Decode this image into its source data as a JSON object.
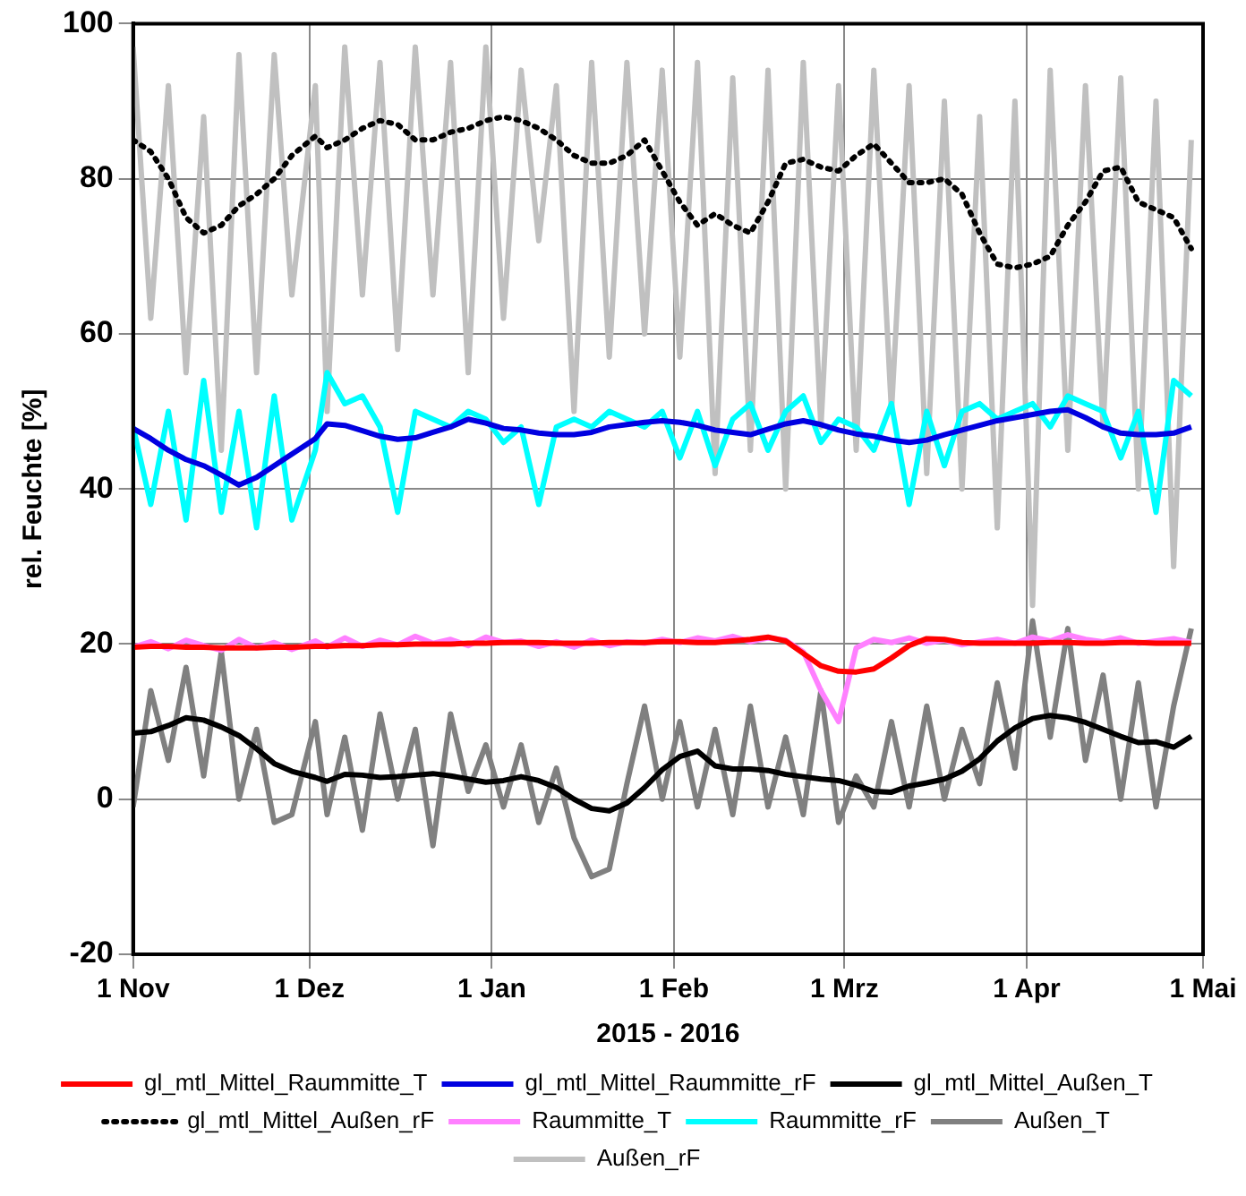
{
  "chart_data": {
    "type": "line",
    "xlabel": "2015 - 2016",
    "ylabel": "rel. Feuchte [%]",
    "x": [
      "2015-11-01",
      "2015-11-04",
      "2015-11-07",
      "2015-11-10",
      "2015-11-13",
      "2015-11-16",
      "2015-11-19",
      "2015-11-22",
      "2015-11-25",
      "2015-11-28",
      "2015-12-02",
      "2015-12-04",
      "2015-12-07",
      "2015-12-10",
      "2015-12-13",
      "2015-12-16",
      "2015-12-19",
      "2015-12-22",
      "2015-12-25",
      "2015-12-28",
      "2015-12-31",
      "2016-01-03",
      "2016-01-06",
      "2016-01-09",
      "2016-01-12",
      "2016-01-15",
      "2016-01-18",
      "2016-01-21",
      "2016-01-24",
      "2016-01-27",
      "2016-01-30",
      "2016-02-02",
      "2016-02-05",
      "2016-02-08",
      "2016-02-11",
      "2016-02-14",
      "2016-02-17",
      "2016-02-20",
      "2016-02-23",
      "2016-02-26",
      "2016-02-29",
      "2016-03-03",
      "2016-03-06",
      "2016-03-09",
      "2016-03-12",
      "2016-03-15",
      "2016-03-18",
      "2016-03-21",
      "2016-03-24",
      "2016-03-27",
      "2016-03-30",
      "2016-04-02",
      "2016-04-05",
      "2016-04-08",
      "2016-04-11",
      "2016-04-14",
      "2016-04-17",
      "2016-04-20",
      "2016-04-23",
      "2016-04-26",
      "2016-04-29"
    ],
    "series": [
      {
        "name": "gl_mtl_Mittel_Raummitte_T",
        "color": "#ff0000",
        "values": [
          19.6,
          19.7,
          19.7,
          19.6,
          19.6,
          19.5,
          19.5,
          19.5,
          19.6,
          19.6,
          19.7,
          19.7,
          19.8,
          19.8,
          19.9,
          19.9,
          20,
          20,
          20,
          20.1,
          20.1,
          20.2,
          20.2,
          20.2,
          20.1,
          20.1,
          20.1,
          20.2,
          20.2,
          20.2,
          20.3,
          20.3,
          20.2,
          20.2,
          20.4,
          20.6,
          20.9,
          20.4,
          18.8,
          17.2,
          16.5,
          16.4,
          16.8,
          18.2,
          19.8,
          20.7,
          20.6,
          20.2,
          20.1,
          20.1,
          20.1,
          20.1,
          20.2,
          20.2,
          20.1,
          20.1,
          20.2,
          20.2,
          20.1,
          20.1,
          20.1
        ]
      },
      {
        "name": "gl_mtl_Mittel_Raummitte_rF",
        "color": "#0000e0",
        "values": [
          47.8,
          46.5,
          45,
          43.8,
          43,
          41.8,
          40.5,
          41.5,
          43,
          44.5,
          46.5,
          48.4,
          48.2,
          47.5,
          46.8,
          46.4,
          46.6,
          47.3,
          48,
          49,
          48.5,
          47.8,
          47.6,
          47.2,
          47,
          47,
          47.3,
          48,
          48.3,
          48.6,
          48.8,
          48.6,
          48.2,
          47.6,
          47.3,
          47,
          47.7,
          48.4,
          48.8,
          48.3,
          47.6,
          47.1,
          46.8,
          46.3,
          46,
          46.3,
          47,
          47.6,
          48.2,
          48.8,
          49.2,
          49.6,
          50,
          50.2,
          49.2,
          48,
          47.2,
          47,
          47,
          47.2,
          48
        ]
      },
      {
        "name": "gl_mtl_Mittel_Außen_T",
        "color": "#000000",
        "values": [
          8.5,
          8.7,
          9.5,
          10.5,
          10.2,
          9.3,
          8.2,
          6.5,
          4.6,
          3.6,
          2.8,
          2.3,
          3.2,
          3.1,
          2.8,
          2.9,
          3.1,
          3.3,
          3,
          2.6,
          2.2,
          2.4,
          2.9,
          2.4,
          1.5,
          0,
          -1.2,
          -1.5,
          -0.5,
          1.5,
          3.8,
          5.5,
          6.2,
          4.3,
          3.9,
          3.9,
          3.7,
          3.2,
          2.9,
          2.6,
          2.4,
          1.8,
          1,
          0.9,
          1.7,
          2.1,
          2.6,
          3.6,
          5.2,
          7.5,
          9.2,
          10.4,
          10.8,
          10.5,
          9.9,
          9,
          8.1,
          7.3,
          7.4,
          6.7,
          8.1
        ]
      },
      {
        "name": "gl_mtl_Mittel_Außen_rF",
        "color": "#000000",
        "line_style": "dotted",
        "values": [
          85,
          83.5,
          80,
          75,
          73,
          74,
          76.5,
          78,
          80,
          83,
          85.5,
          84,
          85,
          86.5,
          87.5,
          87,
          85,
          85,
          86,
          86.5,
          87.5,
          88,
          87.5,
          86.5,
          85,
          83,
          82,
          82,
          83,
          85,
          81,
          77,
          74,
          75.5,
          74,
          73,
          77,
          82,
          82.5,
          81.5,
          81,
          83,
          84.5,
          82,
          79.5,
          79.5,
          80,
          78,
          73,
          69,
          68.5,
          69,
          70,
          74,
          77,
          81,
          81.5,
          77,
          76,
          75,
          71
        ]
      },
      {
        "name": "Raummitte_T",
        "color": "#ff80ff",
        "values": [
          19.6,
          20.3,
          19.4,
          20.5,
          19.8,
          19.2,
          20.6,
          19.5,
          20.2,
          19.3,
          20.4,
          19.6,
          20.8,
          19.7,
          20.5,
          19.9,
          21,
          20.1,
          20.6,
          19.8,
          20.9,
          20.2,
          20.4,
          19.7,
          20.3,
          19.6,
          20.5,
          19.8,
          20.3,
          20.1,
          20.6,
          20.2,
          20.8,
          20.4,
          21,
          20.3,
          20.8,
          20.5,
          19,
          14,
          10,
          19.5,
          20.6,
          20.2,
          20.8,
          20.1,
          20.5,
          19.9,
          20.3,
          20.6,
          20.1,
          20.9,
          20.4,
          21.2,
          20.6,
          20.3,
          20.8,
          20.1,
          20.4,
          20.7,
          20.2
        ]
      },
      {
        "name": "Raummitte_rF",
        "color": "#00ffff",
        "values": [
          48,
          38,
          50,
          36,
          54,
          37,
          50,
          35,
          52,
          36,
          45,
          55,
          51,
          52,
          48,
          37,
          50,
          49,
          48,
          50,
          49,
          46,
          48,
          38,
          48,
          49,
          48,
          50,
          49,
          48,
          50,
          44,
          50,
          43,
          49,
          51,
          45,
          50,
          52,
          46,
          49,
          48,
          45,
          51,
          38,
          50,
          43,
          50,
          51,
          49,
          50,
          51,
          48,
          52,
          51,
          50,
          44,
          50,
          37,
          54,
          52
        ]
      },
      {
        "name": "Außen_T",
        "color": "#808080",
        "values": [
          -1,
          14,
          5,
          17,
          3,
          19,
          0,
          9,
          -3,
          -2,
          10,
          -2,
          8,
          -4,
          11,
          0,
          9,
          -6,
          11,
          1,
          7,
          -1,
          7,
          -3,
          4,
          -5,
          -10,
          -9,
          2,
          12,
          0,
          10,
          -1,
          9,
          -2,
          12,
          -1,
          8,
          -2,
          14,
          -3,
          3,
          -1,
          10,
          -1,
          12,
          0,
          9,
          2,
          15,
          4,
          23,
          8,
          22,
          5,
          16,
          0,
          15,
          -1,
          12,
          22
        ]
      },
      {
        "name": "Außen_rF",
        "color": "#c0c0c0",
        "values": [
          97,
          62,
          92,
          55,
          88,
          45,
          96,
          55,
          96,
          65,
          92,
          50,
          97,
          65,
          95,
          58,
          97,
          65,
          95,
          55,
          97,
          62,
          94,
          72,
          92,
          50,
          95,
          57,
          95,
          60,
          94,
          57,
          95,
          42,
          93,
          45,
          94,
          40,
          95,
          48,
          92,
          45,
          94,
          50,
          92,
          42,
          90,
          40,
          88,
          35,
          90,
          25,
          94,
          45,
          92,
          48,
          93,
          40,
          90,
          30,
          85
        ]
      }
    ],
    "xlim": [
      "2015-11-01",
      "2016-05-01"
    ],
    "xticks": [
      {
        "value": "2015-11-01",
        "label": "1 Nov"
      },
      {
        "value": "2015-12-01",
        "label": "1 Dez"
      },
      {
        "value": "2016-01-01",
        "label": "1 Jan"
      },
      {
        "value": "2016-02-01",
        "label": "1 Feb"
      },
      {
        "value": "2016-03-01",
        "label": "1 Mrz"
      },
      {
        "value": "2016-04-01",
        "label": "1 Apr"
      },
      {
        "value": "2016-05-01",
        "label": "1 Mai"
      }
    ],
    "ylim": [
      -20,
      100
    ],
    "yticks": [
      -20,
      0,
      20,
      40,
      60,
      80,
      100
    ],
    "grid": true,
    "legend": "bottom",
    "marker": "none",
    "line_style": "solid"
  }
}
